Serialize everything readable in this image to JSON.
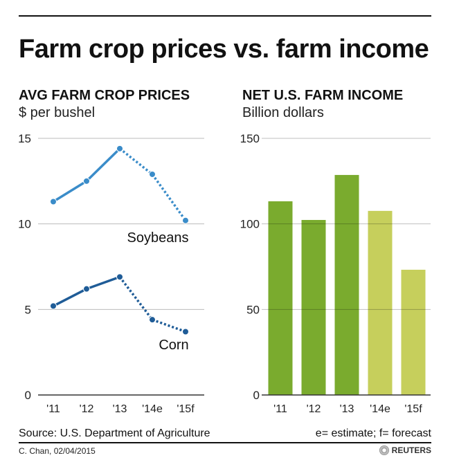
{
  "title": "Farm crop prices vs. farm income",
  "source": "Source: U.S. Department of Agriculture",
  "note": "e= estimate; f= forecast",
  "credit": "C. Chan,  02/04/2015",
  "logo": "REUTERS",
  "chart_data": [
    {
      "type": "line",
      "title": "AVG FARM CROP PRICES",
      "subtitle": "$ per bushel",
      "categories": [
        "'11",
        "'12",
        "'13",
        "'14e",
        "'15f"
      ],
      "ylim": [
        0,
        15
      ],
      "yticks": [
        0,
        5,
        10,
        15
      ],
      "grid": true,
      "series": [
        {
          "name": "Soybeans",
          "values": [
            11.3,
            12.5,
            14.4,
            12.9,
            10.2
          ],
          "color": "#3a8cc9",
          "dashed_from_index": 2
        },
        {
          "name": "Corn",
          "values": [
            5.2,
            6.2,
            6.9,
            4.4,
            3.7
          ],
          "color": "#1f5c97",
          "dashed_from_index": 2
        }
      ]
    },
    {
      "type": "bar",
      "title": "NET U.S. FARM INCOME",
      "subtitle": "Billion dollars",
      "categories": [
        "'11",
        "'12",
        "'13",
        "'14e",
        "'15f"
      ],
      "values": [
        113.2,
        102.3,
        128.6,
        107.6,
        73.2
      ],
      "colors": [
        "#7aab2e",
        "#7aab2e",
        "#7aab2e",
        "#c6cf5c",
        "#c6cf5c"
      ],
      "ylim": [
        0,
        150
      ],
      "yticks": [
        0,
        50,
        100,
        150
      ],
      "grid": true
    }
  ]
}
